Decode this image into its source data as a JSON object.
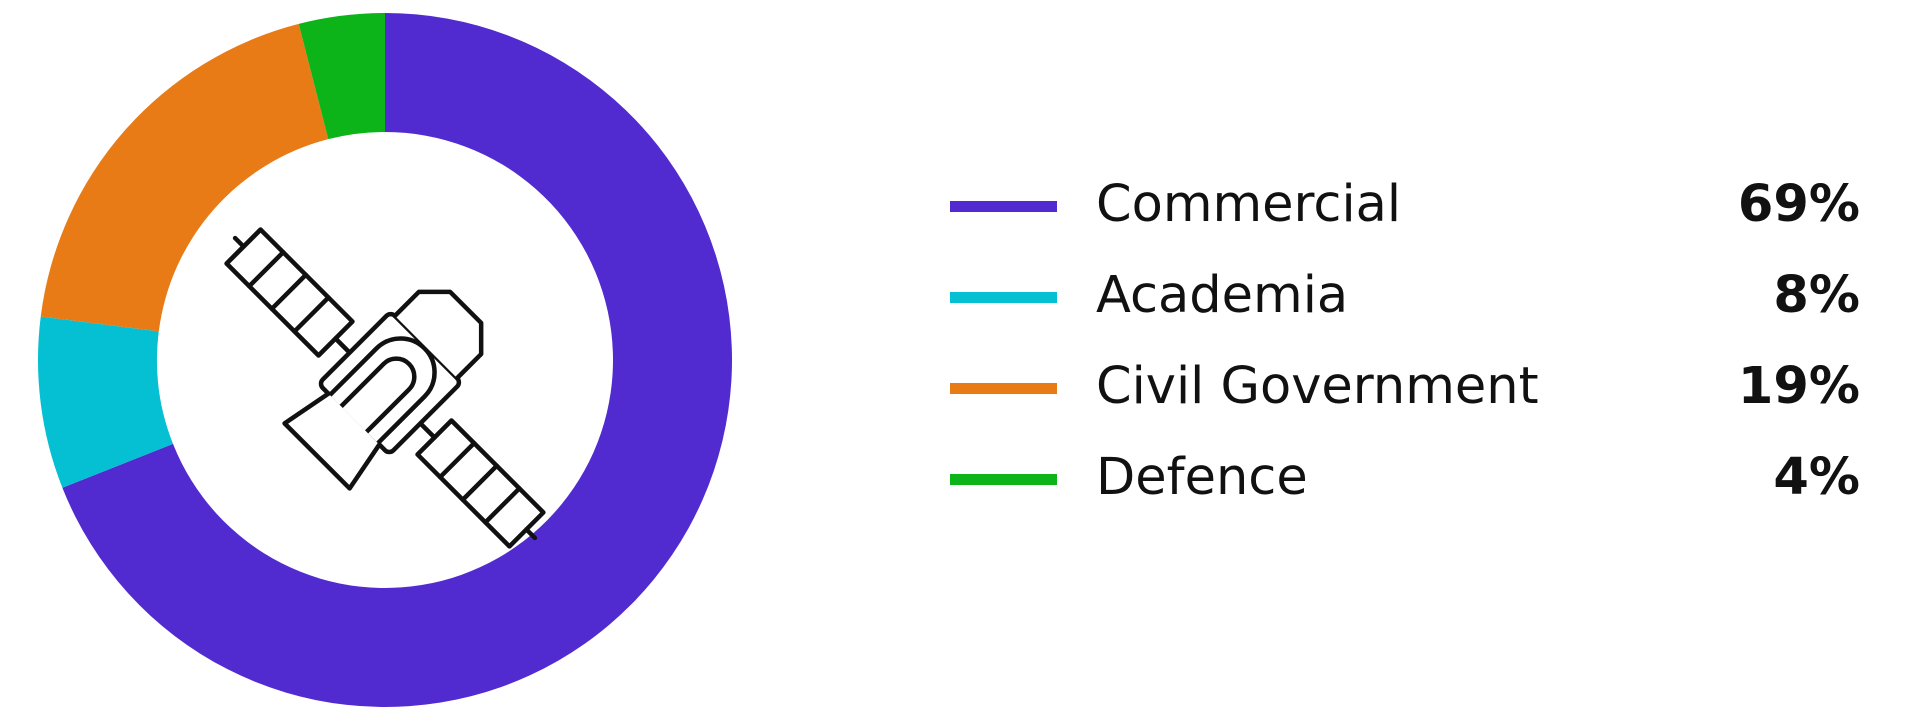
{
  "chart_data": {
    "type": "pie",
    "donut": true,
    "center_icon": "satellite-icon",
    "legend_position": "right",
    "slices": [
      {
        "label": "Commercial",
        "value": 69,
        "value_label": "69%",
        "color": "#512bcf"
      },
      {
        "label": "Academia",
        "value": 8,
        "value_label": "8%",
        "color": "#05bfd2"
      },
      {
        "label": "Civil Government",
        "value": 19,
        "value_label": "19%",
        "color": "#e87b16"
      },
      {
        "label": "Defence",
        "value": 4,
        "value_label": "4%",
        "color": "#0cb419"
      }
    ]
  }
}
